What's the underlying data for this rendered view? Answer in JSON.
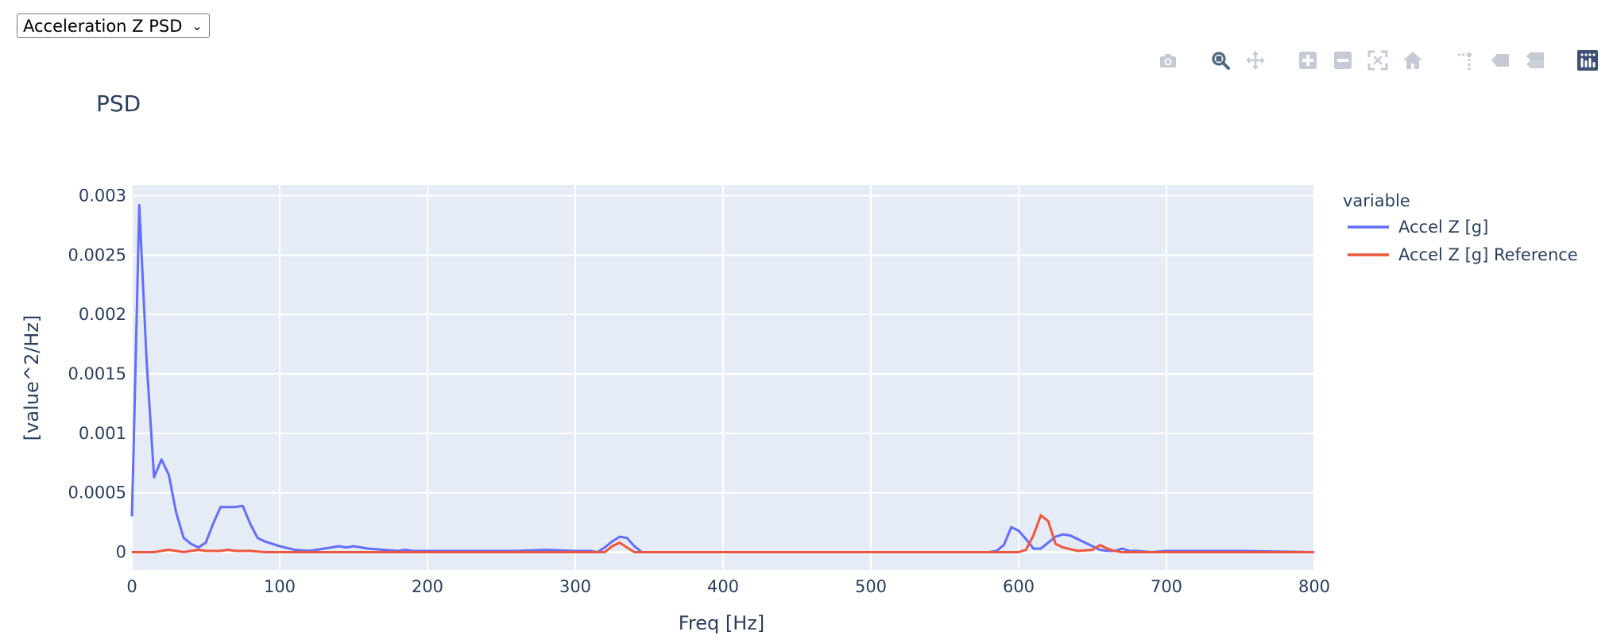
{
  "selector": {
    "selected": "Acceleration Z PSD"
  },
  "modebar": [
    [
      {
        "name": "camera-icon",
        "title": "Download plot as a png"
      }
    ],
    [
      {
        "name": "zoom-icon",
        "title": "Zoom",
        "active": true
      },
      {
        "name": "pan-icon",
        "title": "Pan"
      }
    ],
    [
      {
        "name": "zoom-in-icon",
        "title": "Zoom in"
      },
      {
        "name": "zoom-out-icon",
        "title": "Zoom out"
      },
      {
        "name": "autoscale-icon",
        "title": "Autoscale"
      },
      {
        "name": "home-icon",
        "title": "Reset axes"
      }
    ],
    [
      {
        "name": "spikelines-icon",
        "title": "Toggle Spike Lines"
      },
      {
        "name": "hover-closest-icon",
        "title": "Show closest data on hover"
      },
      {
        "name": "hover-compare-icon",
        "title": "Compare data on hover"
      }
    ],
    [
      {
        "name": "plotly-logo-icon",
        "title": "Produced with Plotly",
        "logo": true
      }
    ]
  ],
  "colors": {
    "plot_bg": "#e5ecf6",
    "grid": "#ffffff",
    "text": "#2a3f5f",
    "modebar_icon": "#c4cbd4",
    "modebar_active": "#506784",
    "logo": "#3f4f75"
  },
  "chart_data": {
    "type": "line",
    "title": "PSD",
    "xlabel": "Freq [Hz]",
    "ylabel": "[value^2/Hz]",
    "xlim": [
      0,
      800
    ],
    "ylim": [
      -0.00015,
      0.00309
    ],
    "xticks": [
      0,
      100,
      200,
      300,
      400,
      500,
      600,
      700,
      800
    ],
    "xtick_labels": [
      "0",
      "100",
      "200",
      "300",
      "400",
      "500",
      "600",
      "700",
      "800"
    ],
    "yticks": [
      0,
      0.0005,
      0.001,
      0.0015,
      0.002,
      0.0025,
      0.003
    ],
    "ytick_labels": [
      "0",
      "0.0005",
      "0.001",
      "0.0015",
      "0.002",
      "0.0025",
      "0.003"
    ],
    "grid": true,
    "legend": {
      "title": "variable",
      "position": "right"
    },
    "series": [
      {
        "name": "Accel Z [g]",
        "color": "#636efa",
        "x": [
          0,
          1,
          5,
          10,
          15,
          20,
          25,
          30,
          35,
          40,
          45,
          50,
          55,
          60,
          65,
          70,
          75,
          80,
          85,
          90,
          95,
          100,
          110,
          120,
          130,
          140,
          145,
          150,
          155,
          160,
          170,
          180,
          185,
          190,
          200,
          220,
          240,
          260,
          280,
          300,
          310,
          315,
          320,
          325,
          330,
          335,
          340,
          345,
          350,
          400,
          450,
          500,
          550,
          580,
          585,
          590,
          595,
          600,
          605,
          610,
          615,
          620,
          625,
          630,
          635,
          640,
          645,
          650,
          655,
          660,
          665,
          670,
          675,
          680,
          690,
          700,
          750,
          800
        ],
        "y": [
          0.0003,
          0.0008,
          0.00292,
          0.0016,
          0.00063,
          0.00078,
          0.00065,
          0.00033,
          0.00012,
          7e-05,
          4e-05,
          8e-05,
          0.00024,
          0.00038,
          0.00038,
          0.00038,
          0.00039,
          0.00024,
          0.00012,
          9e-05,
          7e-05,
          5e-05,
          2e-05,
          1e-05,
          3e-05,
          5e-05,
          4e-05,
          5e-05,
          4e-05,
          3e-05,
          2e-05,
          1e-05,
          2e-05,
          1e-05,
          1e-05,
          1e-05,
          1e-05,
          1e-05,
          2e-05,
          1e-05,
          1e-05,
          0.0,
          4e-05,
          9e-05,
          0.00013,
          0.00012,
          5e-05,
          0.0,
          0.0,
          0.0,
          0.0,
          0.0,
          0.0,
          0.0,
          1e-05,
          6e-05,
          0.00021,
          0.00018,
          0.00011,
          3e-05,
          3e-05,
          8e-05,
          0.00013,
          0.00015,
          0.00014,
          0.00011,
          8e-05,
          5e-05,
          2e-05,
          1e-05,
          1e-05,
          3e-05,
          1e-05,
          1e-05,
          0.0,
          1e-05,
          1e-05,
          0.0
        ]
      },
      {
        "name": "Accel Z [g] Reference",
        "color": "#ef553b",
        "x": [
          0,
          15,
          20,
          25,
          30,
          35,
          40,
          45,
          50,
          60,
          65,
          70,
          80,
          90,
          100,
          200,
          300,
          320,
          325,
          330,
          335,
          340,
          400,
          500,
          580,
          590,
          600,
          605,
          610,
          615,
          620,
          625,
          630,
          640,
          650,
          655,
          660,
          665,
          670,
          680,
          700,
          800
        ],
        "y": [
          0.0,
          0.0,
          1e-05,
          2e-05,
          1e-05,
          0.0,
          1e-05,
          2e-05,
          1e-05,
          1e-05,
          2e-05,
          1e-05,
          1e-05,
          0.0,
          0.0,
          0.0,
          0.0,
          0.0,
          5e-05,
          8e-05,
          4e-05,
          0.0,
          0.0,
          0.0,
          0.0,
          0.0,
          0.0,
          2e-05,
          0.00014,
          0.00031,
          0.00026,
          7e-05,
          4e-05,
          1e-05,
          2e-05,
          6e-05,
          3e-05,
          1e-05,
          0.0,
          0.0,
          0.0,
          0.0
        ]
      }
    ]
  }
}
